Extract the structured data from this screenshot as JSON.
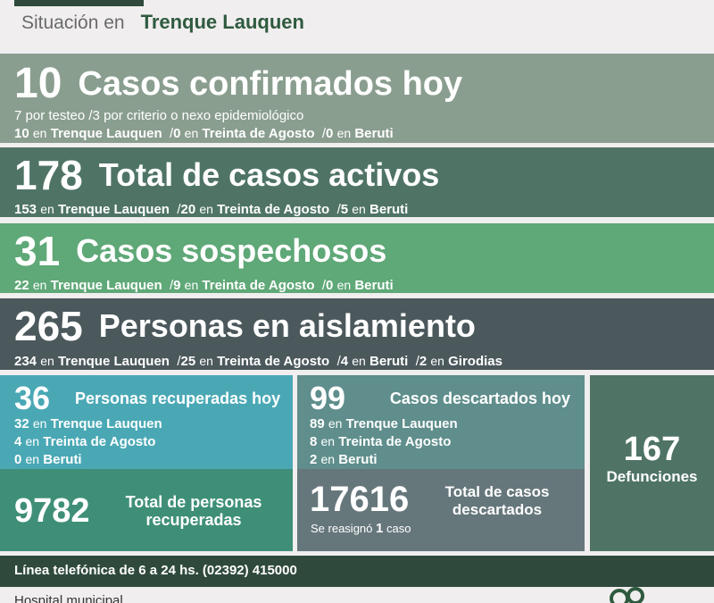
{
  "header": {
    "prefix": "Situación en",
    "city": "Trenque Lauquen"
  },
  "en": "en",
  "sep": "/",
  "confirmados": {
    "number": "10",
    "title": "Casos confirmados hoy",
    "line1": "7 por testeo  /3 por criterio o nexo epidemiológico",
    "n1": "10",
    "l1": "Trenque Lauquen",
    "n2": "0",
    "l2": "Treinta de Agosto",
    "n3": "0",
    "l3": "Beruti"
  },
  "activos": {
    "number": "178",
    "title": "Total de casos activos",
    "n1": "153",
    "l1": "Trenque Lauquen",
    "n2": "20",
    "l2": "Treinta de Agosto",
    "n3": "5",
    "l3": "Beruti"
  },
  "sospechosos": {
    "number": "31",
    "title": "Casos sospechosos",
    "n1": "22",
    "l1": "Trenque Lauquen",
    "n2": "9",
    "l2": "Treinta de Agosto",
    "n3": "0",
    "l3": "Beruti"
  },
  "aislamiento": {
    "number": "265",
    "title": "Personas en aislamiento",
    "n1": "234",
    "l1": "Trenque Lauquen",
    "n2": "25",
    "l2": "Treinta de Agosto",
    "n3": "4",
    "l3": "Beruti",
    "n4": "2",
    "l4": "Girodias"
  },
  "recuperados_hoy": {
    "number": "36",
    "title": "Personas recuperadas hoy",
    "n1": "32",
    "l1": "Trenque Lauquen",
    "n2": "4",
    "l2": "Treinta de Agosto",
    "n3": "0",
    "l3": "Beruti"
  },
  "recuperados_total": {
    "number": "9782",
    "title1": "Total de personas",
    "title2": "recuperadas"
  },
  "descartados_hoy": {
    "number": "99",
    "title": "Casos descartados hoy",
    "n1": "89",
    "l1": "Trenque Lauquen",
    "n2": "8",
    "l2": "Treinta de Agosto",
    "n3": "2",
    "l3": "Beruti"
  },
  "descartados_total": {
    "number": "17616",
    "title1": "Total de casos",
    "title2": "descartados",
    "note_pre": "Se reasignó",
    "note_num": "1",
    "note_post": "caso"
  },
  "defunciones": {
    "number": "167",
    "label": "Defunciones"
  },
  "footer": {
    "phone": "Línea telefónica de 6 a 24 hs. (02392) 415000"
  },
  "bottom": {
    "text": "Hospital municipal"
  },
  "colors": {
    "dark_green": "#2f4a3c",
    "confirmados": "#8a9e8f",
    "activos": "#4f7466",
    "sospechosos": "#5fa877",
    "aislamiento": "#4b585c"
  }
}
